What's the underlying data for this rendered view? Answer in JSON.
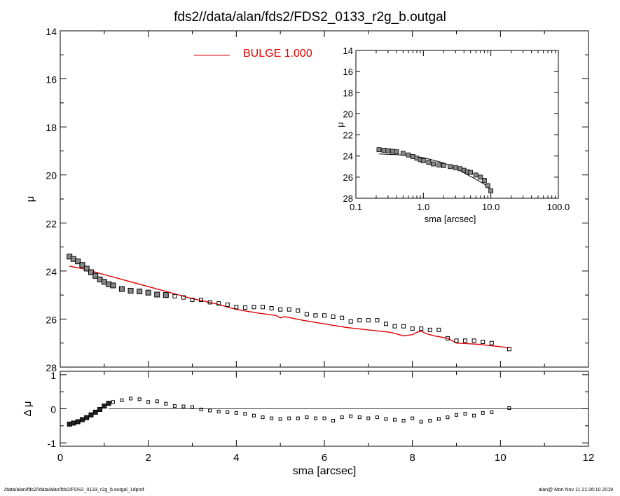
{
  "title": "fds2//data/alan/fds2/FDS2_0133_r2g_b.outgal",
  "footer": {
    "left": "/data/alan/fds2//data/alan/fds2/FDS2_0133_r2g_b.outgal_1dprof",
    "right": "alan@  Mon Nov 11 21:26:10 2019"
  },
  "colors": {
    "model": "#e00000",
    "data": "#000000",
    "axes": "#000000"
  },
  "chart_data": [
    {
      "name": "main-profile",
      "type": "scatter",
      "title": "",
      "xlabel": "",
      "ylabel": "μ",
      "xlim": [
        0,
        12
      ],
      "ylim": [
        28,
        14
      ],
      "y_inverted": true,
      "yticks": [
        "14",
        "16",
        "18",
        "20",
        "22",
        "24",
        "26",
        "28"
      ],
      "legend": {
        "label": "BULGE  1.000",
        "placement": "top-center"
      },
      "data_points": {
        "x": [
          0.21,
          0.3,
          0.4,
          0.5,
          0.6,
          0.7,
          0.8,
          0.9,
          1.0,
          1.1,
          1.2,
          1.4,
          1.6,
          1.8,
          2.0,
          2.2,
          2.4,
          2.6,
          2.8,
          3.0,
          3.2,
          3.4,
          3.6,
          3.8,
          4.0,
          4.2,
          4.4,
          4.6,
          4.8,
          5.0,
          5.2,
          5.4,
          5.6,
          5.8,
          6.0,
          6.2,
          6.4,
          6.6,
          6.8,
          7.0,
          7.2,
          7.4,
          7.6,
          7.8,
          8.0,
          8.2,
          8.4,
          8.6,
          8.8,
          9.0,
          9.2,
          9.4,
          9.6,
          9.8,
          10.2
        ],
        "y": [
          23.4,
          23.5,
          23.6,
          23.75,
          23.9,
          24.05,
          24.2,
          24.35,
          24.45,
          24.55,
          24.6,
          24.75,
          24.82,
          24.85,
          24.9,
          24.98,
          25.0,
          25.05,
          25.1,
          25.2,
          25.2,
          25.3,
          25.35,
          25.4,
          25.5,
          25.52,
          25.5,
          25.5,
          25.55,
          25.6,
          25.6,
          25.65,
          25.8,
          25.85,
          25.85,
          25.9,
          25.95,
          26.1,
          26.05,
          26.05,
          26.05,
          26.2,
          26.3,
          26.3,
          26.4,
          26.4,
          26.45,
          26.45,
          26.8,
          26.9,
          26.9,
          26.9,
          26.95,
          27.0,
          27.25
        ]
      },
      "model_curve": {
        "name": "BULGE  1.000",
        "x": [
          0.21,
          0.5,
          0.8,
          1.0,
          1.5,
          2.0,
          2.5,
          3.0,
          3.5,
          4.0,
          4.5,
          4.9,
          5.0,
          5.1,
          5.5,
          6.0,
          6.5,
          7.0,
          7.5,
          7.8,
          8.0,
          8.1,
          8.2,
          8.3,
          8.5,
          8.8,
          9.0,
          9.5,
          10.0,
          10.2
        ],
        "y": [
          23.8,
          23.9,
          24.05,
          24.15,
          24.4,
          24.65,
          24.9,
          25.15,
          25.35,
          25.6,
          25.75,
          25.85,
          25.95,
          25.9,
          26.05,
          26.2,
          26.35,
          26.45,
          26.55,
          26.7,
          26.65,
          26.55,
          26.5,
          26.6,
          26.7,
          26.8,
          27.0,
          27.05,
          27.15,
          27.2
        ]
      }
    },
    {
      "name": "inset-profile",
      "type": "scatter",
      "title": "",
      "xlabel": "sma [arcsec]",
      "ylabel": "μ",
      "xscale": "log",
      "xlim": [
        0.1,
        100.0
      ],
      "ylim": [
        28,
        14
      ],
      "y_inverted": true,
      "xticks": [
        "0.1",
        "1.0",
        "10.0",
        "100.0"
      ],
      "yticks": [
        "14",
        "16",
        "18",
        "20",
        "22",
        "24",
        "26",
        "28"
      ],
      "data_points": {
        "x": [
          0.22,
          0.26,
          0.3,
          0.35,
          0.4,
          0.5,
          0.6,
          0.7,
          0.8,
          0.9,
          1.0,
          1.2,
          1.4,
          1.7,
          2.0,
          2.5,
          3.0,
          3.5,
          4.0,
          4.5,
          5.0,
          6.0,
          7.0,
          8.0,
          9.0,
          10.0
        ],
        "y": [
          23.4,
          23.45,
          23.5,
          23.55,
          23.6,
          23.75,
          23.9,
          24.05,
          24.2,
          24.35,
          24.45,
          24.6,
          24.75,
          24.85,
          24.9,
          25.0,
          25.1,
          25.2,
          25.35,
          25.5,
          25.55,
          25.8,
          26.0,
          26.3,
          26.8,
          27.3
        ]
      },
      "model_curve": {
        "x": [
          0.22,
          0.5,
          1.0,
          2.0,
          3.0,
          4.0,
          6.0,
          8.0,
          10.0
        ],
        "y": [
          23.8,
          23.9,
          24.15,
          24.65,
          25.15,
          25.6,
          26.2,
          26.65,
          27.2
        ]
      }
    },
    {
      "name": "residual",
      "type": "scatter",
      "title": "",
      "xlabel": "sma [arcsec]",
      "ylabel": "Δ μ",
      "xlim": [
        0,
        12
      ],
      "ylim": [
        -1.1,
        1.1
      ],
      "xticks": [
        "0",
        "2",
        "4",
        "6",
        "8",
        "10",
        "12"
      ],
      "yticks": [
        "-1",
        "0",
        "1"
      ],
      "zero_line": {
        "from": 1.1,
        "to": 12
      },
      "data_points": {
        "x": [
          0.21,
          0.3,
          0.4,
          0.5,
          0.6,
          0.7,
          0.8,
          0.9,
          1.0,
          1.1,
          1.2,
          1.4,
          1.6,
          1.8,
          2.0,
          2.2,
          2.4,
          2.6,
          2.8,
          3.0,
          3.2,
          3.4,
          3.6,
          3.8,
          4.0,
          4.2,
          4.4,
          4.6,
          4.8,
          5.0,
          5.2,
          5.4,
          5.6,
          5.8,
          6.0,
          6.2,
          6.4,
          6.6,
          6.8,
          7.0,
          7.2,
          7.4,
          7.6,
          7.8,
          8.0,
          8.2,
          8.4,
          8.6,
          8.8,
          9.0,
          9.2,
          9.4,
          9.6,
          9.8,
          10.2
        ],
        "y": [
          -0.45,
          -0.42,
          -0.38,
          -0.32,
          -0.26,
          -0.18,
          -0.1,
          -0.02,
          0.08,
          0.16,
          0.2,
          0.25,
          0.3,
          0.28,
          0.2,
          0.22,
          0.15,
          0.08,
          0.07,
          0.05,
          -0.02,
          -0.05,
          -0.08,
          -0.1,
          -0.12,
          -0.15,
          -0.2,
          -0.25,
          -0.28,
          -0.3,
          -0.28,
          -0.28,
          -0.25,
          -0.28,
          -0.28,
          -0.35,
          -0.25,
          -0.22,
          -0.25,
          -0.28,
          -0.25,
          -0.3,
          -0.32,
          -0.35,
          -0.28,
          -0.38,
          -0.35,
          -0.3,
          -0.25,
          -0.18,
          -0.15,
          -0.2,
          -0.12,
          -0.1,
          0.02
        ]
      }
    }
  ]
}
